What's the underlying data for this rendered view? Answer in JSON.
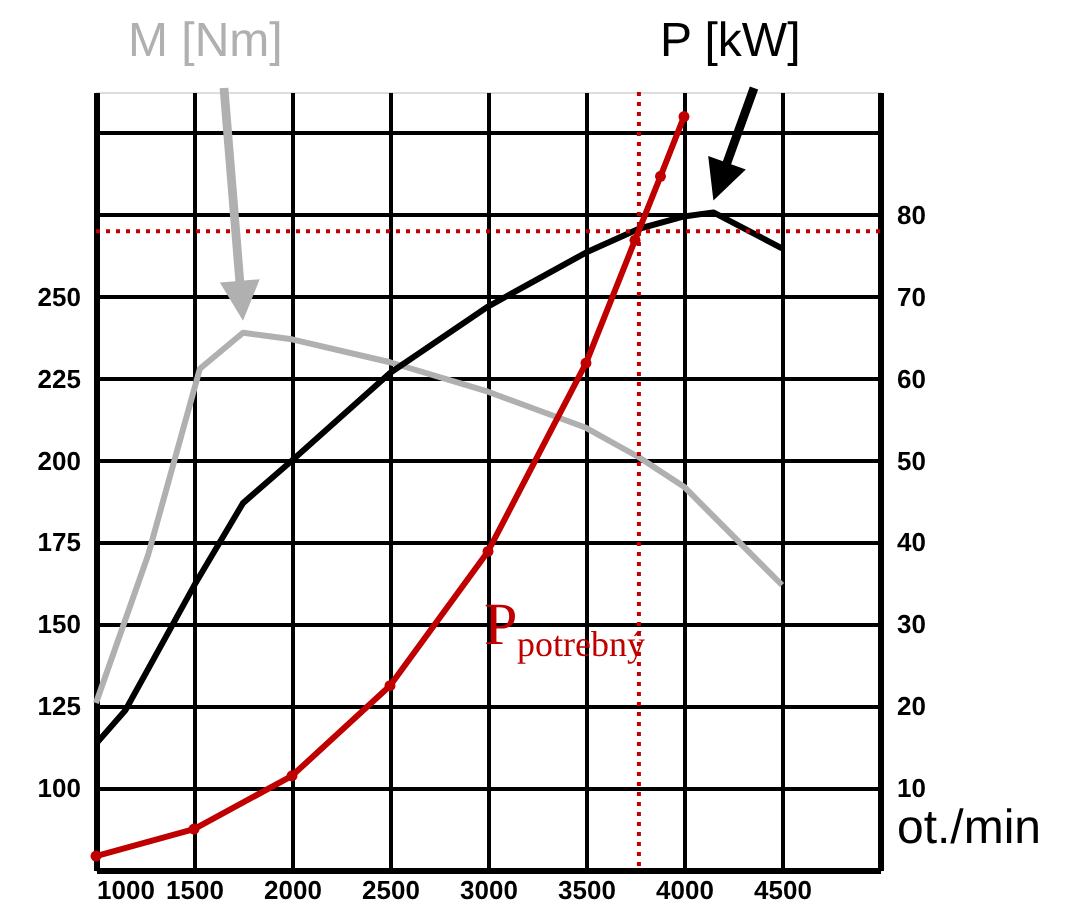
{
  "chart_data": {
    "type": "line",
    "xlabel": "ot./min",
    "xlim": [
      1000,
      5000
    ],
    "xticks": [
      1000,
      1500,
      2000,
      2500,
      3000,
      3500,
      4000,
      4500,
      {
        "value": 5000,
        "label": null
      }
    ],
    "ylim": [
      75,
      312.5
    ],
    "yticks": [
      {
        "value": 75,
        "label": null
      },
      100,
      125,
      150,
      175,
      200,
      225,
      250,
      {
        "value": 275,
        "label": null
      },
      {
        "value": 300,
        "label": null
      }
    ],
    "y2lim": [
      0,
      95
    ],
    "y2ticks": [
      {
        "value": 0,
        "label": null
      },
      10,
      20,
      30,
      40,
      50,
      60,
      70,
      80,
      {
        "value": 90,
        "label": null
      }
    ],
    "grid": true,
    "line_style": "solid",
    "series": [
      {
        "name": "M [Nm]",
        "color": "#b0b0b0",
        "x": [
          1000,
          1265,
          1530,
          1750,
          2000,
          2500,
          3000,
          3500,
          3770,
          4000,
          4500
        ],
        "values": [
          126,
          171,
          228,
          239,
          237,
          230,
          221,
          210,
          201,
          192,
          162
        ]
      },
      {
        "name": "P [kW]",
        "color": "#000000",
        "axis": "y2",
        "x": [
          1000,
          1150,
          1500,
          1750,
          2000,
          2500,
          3000,
          3500,
          3770,
          4000,
          4150,
          4500
        ],
        "values": [
          15.4,
          19.5,
          34.7,
          44.8,
          50,
          60.7,
          68.8,
          75.4,
          78.3,
          79.8,
          80.3,
          75.9
        ]
      },
      {
        "name": "P$_{potrebný}$",
        "color": "#c00000",
        "axis": "y2",
        "marker": "circle",
        "x": [
          1000,
          1500,
          2000,
          2500,
          3000,
          3500,
          3750,
          3880,
          4000
        ],
        "values": [
          1.7,
          5,
          11.5,
          22.5,
          38.9,
          61.9,
          76.9,
          84.7,
          92
        ]
      }
    ],
    "ref_lines": [
      {
        "axis": "x",
        "value": 3770,
        "color": "#c00000",
        "line_style": "dotted"
      },
      {
        "axis": "y2",
        "value": 78,
        "color": "#c00000",
        "line_style": "dotted"
      }
    ]
  }
}
